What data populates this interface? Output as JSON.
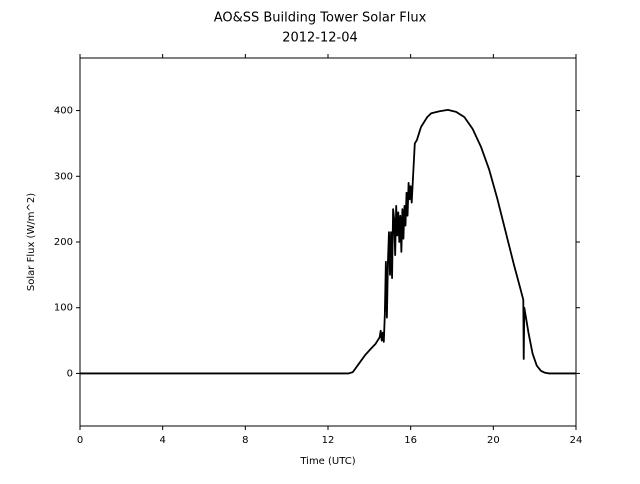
{
  "chart_data": {
    "type": "line",
    "title": "AO&SS Building Tower Solar Flux",
    "subtitle": "2012-12-04",
    "x_label": "Time (UTC)",
    "y_label": "Solar Flux (W/m^2)",
    "xlim": [
      0,
      24
    ],
    "xticks": [
      0,
      4,
      8,
      12,
      16,
      20,
      24
    ],
    "ylim": [
      -80,
      480
    ],
    "yticks": [
      0,
      100,
      200,
      300,
      400
    ],
    "series": [
      {
        "color": "#000000",
        "x": [
          0,
          12.5,
          13.0,
          13.2,
          13.5,
          13.8,
          14.0,
          14.3,
          14.5,
          14.55,
          14.6,
          14.65,
          14.7,
          14.75,
          14.8,
          14.85,
          14.9,
          14.95,
          15.0,
          15.05,
          15.1,
          15.15,
          15.2,
          15.25,
          15.3,
          15.35,
          15.4,
          15.45,
          15.5,
          15.55,
          15.6,
          15.65,
          15.7,
          15.75,
          15.8,
          15.85,
          15.9,
          15.95,
          16.0,
          16.05,
          16.1,
          16.2,
          16.3,
          16.4,
          16.5,
          16.8,
          17.0,
          17.4,
          17.8,
          18.2,
          18.6,
          19.0,
          19.4,
          19.8,
          20.2,
          20.6,
          21.0,
          21.3,
          21.45,
          21.47,
          21.5,
          21.7,
          21.9,
          22.1,
          22.3,
          22.5,
          22.7,
          24
        ],
        "values": [
          0,
          0,
          0,
          2,
          15,
          28,
          35,
          45,
          55,
          65,
          50,
          62,
          48,
          90,
          170,
          85,
          170,
          215,
          150,
          215,
          145,
          250,
          235,
          180,
          255,
          210,
          245,
          200,
          240,
          185,
          250,
          205,
          255,
          225,
          275,
          240,
          290,
          265,
          285,
          260,
          290,
          350,
          355,
          365,
          375,
          390,
          396,
          399,
          401,
          398,
          390,
          372,
          345,
          310,
          265,
          215,
          165,
          130,
          112,
          22,
          100,
          62,
          30,
          12,
          4,
          1,
          0,
          0
        ]
      }
    ]
  }
}
